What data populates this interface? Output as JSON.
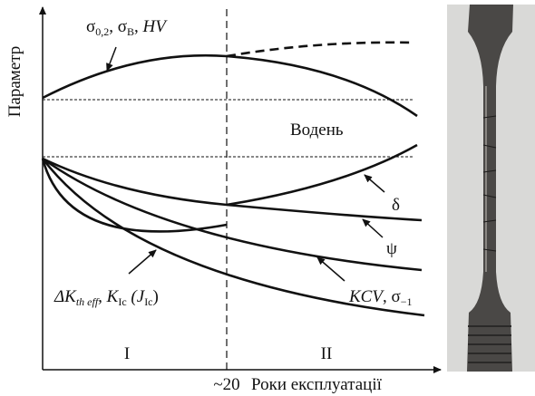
{
  "diagram": {
    "y_axis_label": "Параметр",
    "x_axis_label": "Роки експлуатації",
    "x_marker": "~20",
    "zones": [
      "I",
      "II"
    ],
    "hydrogen_label": "Водень",
    "strength_label": [
      "σ",
      "0,2",
      ", σ",
      "B",
      ", ",
      "HV"
    ],
    "delta_label": "δ",
    "psi_label": "ψ",
    "kcv_label": [
      "KCV",
      ", σ",
      "−1"
    ],
    "fracture_label": [
      "ΔK",
      "th eff",
      ", K",
      "Ic",
      " (J",
      "Ic",
      ")"
    ]
  }
}
